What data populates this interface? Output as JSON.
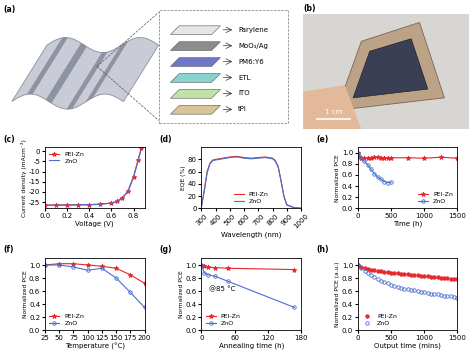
{
  "chart_data": [
    {
      "type": "line",
      "title": "(c)",
      "x_label": "Voltage (V)",
      "y_label": "Current density (mAcm⁻²)",
      "x": [
        0,
        0.1,
        0.2,
        0.3,
        0.4,
        0.5,
        0.6,
        0.65,
        0.7,
        0.75,
        0.8,
        0.84,
        0.87
      ],
      "series": [
        {
          "name": "PEI-Zn",
          "color": "#e8262b",
          "marker": "star",
          "line_style": "solid",
          "values": [
            -26.4,
            -26.4,
            -26.3,
            -26.3,
            -26.2,
            -26.0,
            -25.4,
            -24.6,
            -22.8,
            -19.5,
            -12.5,
            -4.5,
            1.5
          ]
        },
        {
          "name": "ZnO",
          "color": "#4a6fd1",
          "marker": "none",
          "line_style": "solid",
          "values": [
            -26.6,
            -26.5,
            -26.5,
            -26.4,
            -26.3,
            -26.1,
            -25.5,
            -24.8,
            -23.0,
            -19.8,
            -12.8,
            -5.0,
            1.0
          ]
        }
      ],
      "xlim": [
        0,
        0.9
      ],
      "ylim": [
        -28,
        2
      ],
      "xticks": [
        {
          "value": 0,
          "label": "0.0"
        },
        0.2,
        0.4,
        0.6,
        0.8
      ],
      "yticks": [
        -25,
        -20,
        -15,
        -10,
        -5,
        0
      ],
      "legend": "upper left"
    },
    {
      "type": "line",
      "title": "(d)",
      "x_label": "Wavelength (nm)",
      "y_label": "EQE (%)",
      "x": [
        300,
        320,
        340,
        360,
        380,
        400,
        450,
        500,
        550,
        600,
        650,
        700,
        750,
        800,
        820,
        840,
        860,
        880,
        900,
        950,
        1000
      ],
      "series": [
        {
          "name": "PEI-Zn",
          "color": "#e8262b",
          "marker": "none",
          "line_style": "solid",
          "values": [
            3,
            30,
            60,
            74,
            79,
            80,
            82,
            84,
            85,
            83,
            82,
            83,
            84,
            82,
            78,
            68,
            45,
            20,
            6,
            1,
            0
          ]
        },
        {
          "name": "ZnO",
          "color": "#4a6fd1",
          "marker": "none",
          "line_style": "solid",
          "values": [
            3,
            28,
            58,
            73,
            78,
            79,
            81,
            83,
            84,
            82,
            81,
            82,
            83,
            81,
            77,
            67,
            44,
            19,
            5,
            1,
            0
          ]
        }
      ],
      "xlim": [
        300,
        1000
      ],
      "ylim": [
        0,
        100
      ],
      "xticks": [
        300,
        400,
        500,
        600,
        700,
        800,
        900,
        1000
      ],
      "yticks": [
        0,
        20,
        40,
        60,
        80
      ],
      "legend": "lower center"
    },
    {
      "type": "line",
      "title": "(e)",
      "x_label": "Time (h)",
      "y_label": "Normalized PCE",
      "x": [
        0,
        24,
        48,
        96,
        150,
        200,
        250,
        300,
        350,
        400,
        450,
        500,
        750,
        1000,
        1250,
        1500
      ],
      "series": [
        {
          "name": "PEI-Zn",
          "color": "#e8262b",
          "marker": "star",
          "line_style": "solid",
          "values": [
            1.0,
            0.93,
            0.91,
            0.9,
            0.91,
            0.91,
            0.92,
            0.92,
            0.91,
            0.91,
            0.91,
            0.91,
            0.91,
            0.9,
            0.92,
            0.9
          ]
        },
        {
          "name": "ZnO",
          "color": "#4a6fd1",
          "marker": "open_circle",
          "line_style": "solid",
          "values": [
            1.0,
            0.95,
            0.9,
            0.85,
            0.78,
            0.7,
            0.62,
            0.56,
            0.52,
            0.48,
            0.46,
            0.47,
            null,
            null,
            null,
            null
          ]
        }
      ],
      "xlim": [
        0,
        1500
      ],
      "ylim": [
        0,
        1.1
      ],
      "xticks": [
        0,
        500,
        1000,
        1500
      ],
      "yticks": [
        {
          "value": 0,
          "label": "0.0"
        },
        0.2,
        0.4,
        0.6,
        0.8,
        {
          "value": 1,
          "label": "1.0"
        }
      ],
      "legend": "lower right"
    },
    {
      "type": "line",
      "title": "(f)",
      "x_label": "Temperature (°C)",
      "y_label": "Normalized PCE",
      "x": [
        25,
        50,
        75,
        100,
        125,
        150,
        175,
        200
      ],
      "series": [
        {
          "name": "PEI-Zn",
          "color": "#e8262b",
          "marker": "star",
          "line_style": "solid",
          "values": [
            1.0,
            1.02,
            1.02,
            1.0,
            0.98,
            0.95,
            0.85,
            0.72
          ]
        },
        {
          "name": "ZnO",
          "color": "#4a6fd1",
          "marker": "open_circle",
          "line_style": "solid",
          "values": [
            1.0,
            1.0,
            0.97,
            0.92,
            0.95,
            0.8,
            0.58,
            0.35
          ]
        }
      ],
      "xlim": [
        25,
        200
      ],
      "ylim": [
        0,
        1.1
      ],
      "xticks": [
        25,
        50,
        75,
        100,
        125,
        150,
        175,
        200
      ],
      "yticks": [
        {
          "value": 0,
          "label": "0.0"
        },
        0.2,
        0.4,
        0.6,
        0.8,
        {
          "value": 1,
          "label": "1.0"
        }
      ],
      "legend": "lower left"
    },
    {
      "type": "line",
      "title": "(g)",
      "x_label": "Annealing time (h)",
      "y_label": "Normalized PCE",
      "annotation": "@85 °C",
      "x": [
        0,
        5,
        12,
        24,
        48,
        168
      ],
      "series": [
        {
          "name": "PEI-Zn",
          "color": "#e8262b",
          "marker": "star",
          "line_style": "solid",
          "values": [
            1.0,
            0.98,
            0.97,
            0.96,
            0.95,
            0.93
          ]
        },
        {
          "name": "ZnO",
          "color": "#4a6fd1",
          "marker": "open_circle",
          "line_style": "solid",
          "values": [
            1.0,
            0.88,
            0.85,
            0.83,
            0.75,
            0.35
          ]
        }
      ],
      "xlim": [
        0,
        180
      ],
      "ylim": [
        0,
        1.1
      ],
      "xticks": [
        0,
        60,
        120,
        180
      ],
      "yticks": [
        {
          "value": 0,
          "label": "0.0"
        },
        0.2,
        0.4,
        0.6,
        0.8,
        {
          "value": 1,
          "label": "1.0"
        }
      ],
      "legend": "lower left"
    },
    {
      "type": "line",
      "title": "(h)",
      "x_label": "Output time (mins)",
      "y_label": "Normalized PCE (a.u.)",
      "x": [
        0,
        50,
        100,
        150,
        200,
        250,
        300,
        350,
        400,
        450,
        500,
        550,
        600,
        650,
        700,
        750,
        800,
        850,
        900,
        950,
        1000,
        1050,
        1100,
        1150,
        1200,
        1250,
        1300,
        1350,
        1400,
        1450,
        1500
      ],
      "series": [
        {
          "name": "PEI-Zn",
          "color": "#e8262b",
          "marker": "circle",
          "line_style": "none",
          "values": [
            1.0,
            0.97,
            0.95,
            0.94,
            0.93,
            0.92,
            0.91,
            0.905,
            0.9,
            0.89,
            0.885,
            0.88,
            0.87,
            0.865,
            0.86,
            0.855,
            0.85,
            0.845,
            0.84,
            0.835,
            0.83,
            0.825,
            0.82,
            0.815,
            0.81,
            0.805,
            0.8,
            0.795,
            0.79,
            0.785,
            0.78
          ]
        },
        {
          "name": "ZnO",
          "color": "#4a6fd1",
          "marker": "open_circle",
          "line_style": "none",
          "values": [
            1.0,
            0.95,
            0.91,
            0.87,
            0.84,
            0.81,
            0.78,
            0.76,
            0.74,
            0.72,
            0.7,
            0.685,
            0.67,
            0.655,
            0.64,
            0.63,
            0.62,
            0.61,
            0.6,
            0.59,
            0.58,
            0.57,
            0.56,
            0.555,
            0.55,
            0.54,
            0.53,
            0.525,
            0.52,
            0.51,
            0.5
          ]
        }
      ],
      "xlim": [
        0,
        1500
      ],
      "ylim": [
        0,
        1.1
      ],
      "xticks": [
        0,
        500,
        1000,
        1500
      ],
      "yticks": [
        {
          "value": 0,
          "label": "0.0"
        },
        0.2,
        0.4,
        0.6,
        0.8,
        {
          "value": 1,
          "label": "1.0"
        }
      ],
      "legend": "lower left"
    }
  ],
  "schematic": {
    "title": "(a)",
    "layers": [
      "Parylene",
      "MoO₃/Ag",
      "PM6:Y6",
      "ETL",
      "ITO",
      "tPI"
    ]
  },
  "photo": {
    "title": "(b)",
    "scale_bar": "1 cm"
  }
}
